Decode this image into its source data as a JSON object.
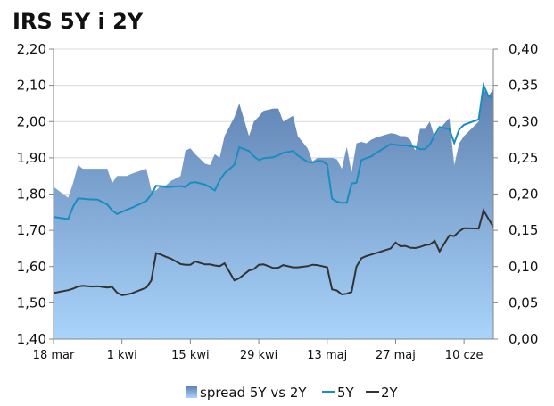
{
  "chart_data": {
    "type": "area",
    "title": "IRS 5Y i 2Y",
    "xlabel": "",
    "ylabel": "",
    "ylim_left": [
      1.4,
      2.2
    ],
    "ylim_right": [
      0.0,
      0.4
    ],
    "left_ticks": [
      "1,40",
      "1,50",
      "1,60",
      "1,70",
      "1,80",
      "1,90",
      "2,00",
      "2,10",
      "2,20"
    ],
    "right_ticks": [
      "0,00",
      "0,05",
      "0,10",
      "0,15",
      "0,20",
      "0,25",
      "0,30",
      "0,35",
      "0,40"
    ],
    "x_tick_labels": [
      "18 mar",
      "1 kwi",
      "15 kwi",
      "29 kwi",
      "13 maj",
      "27 maj",
      "10 cze"
    ],
    "x_tick_days": [
      0,
      14,
      28,
      42,
      56,
      70,
      84
    ],
    "x_range_days": [
      0,
      90
    ],
    "grid": "horizontal",
    "legend_position": "bottom",
    "colors": {
      "spread_top": "#6B8FBC",
      "spread_bottom": "#A9D3FA",
      "line_5y": "#1A8DC0",
      "line_2y": "#333333"
    },
    "series": [
      {
        "name": "spread 5Y vs 2Y",
        "axis": "right",
        "kind": "area",
        "x": [
          0,
          3,
          4,
          5,
          6,
          7,
          8,
          9,
          11,
          12,
          13,
          14,
          15,
          16,
          19,
          20,
          21,
          22,
          23,
          24,
          26,
          27,
          28,
          29,
          31,
          32,
          33,
          34,
          35,
          37,
          38,
          40,
          41,
          42,
          43,
          45,
          46,
          47,
          49,
          50,
          52,
          53,
          54,
          55,
          56,
          57,
          58,
          59,
          60,
          61,
          62,
          63,
          64,
          65,
          66,
          69,
          70,
          71,
          72,
          73,
          74,
          75,
          76,
          77,
          78,
          79,
          81,
          82,
          83,
          84,
          87,
          88,
          89,
          90
        ],
        "values": [
          0.21,
          0.195,
          0.215,
          0.24,
          0.235,
          0.235,
          0.235,
          0.235,
          0.235,
          0.215,
          0.225,
          0.225,
          0.225,
          0.228,
          0.235,
          0.205,
          0.205,
          0.212,
          0.212,
          0.218,
          0.225,
          0.26,
          0.263,
          0.255,
          0.242,
          0.24,
          0.255,
          0.25,
          0.28,
          0.306,
          0.325,
          0.28,
          0.3,
          0.307,
          0.315,
          0.318,
          0.318,
          0.3,
          0.308,
          0.28,
          0.263,
          0.245,
          0.25,
          0.25,
          0.25,
          0.25,
          0.248,
          0.235,
          0.265,
          0.23,
          0.27,
          0.272,
          0.27,
          0.275,
          0.278,
          0.284,
          0.283,
          0.28,
          0.28,
          0.275,
          0.26,
          0.29,
          0.29,
          0.3,
          0.278,
          0.29,
          0.305,
          0.24,
          0.27,
          0.28,
          0.3,
          0.345,
          0.335,
          0.345
        ]
      },
      {
        "name": "5Y",
        "axis": "left",
        "kind": "line",
        "x": [
          0,
          3,
          4,
          5,
          6,
          7,
          8,
          9,
          11,
          12,
          13,
          14,
          15,
          16,
          19,
          20,
          21,
          22,
          23,
          24,
          26,
          27,
          28,
          29,
          31,
          32,
          33,
          34,
          35,
          37,
          38,
          40,
          41,
          42,
          43,
          45,
          46,
          47,
          49,
          50,
          52,
          53,
          54,
          55,
          56,
          57,
          58,
          59,
          60,
          61,
          62,
          63,
          64,
          65,
          66,
          69,
          70,
          71,
          72,
          73,
          74,
          75,
          76,
          77,
          78,
          79,
          81,
          82,
          83,
          84,
          87,
          88,
          89,
          90
        ],
        "values": [
          1.737,
          1.731,
          1.765,
          1.788,
          1.787,
          1.786,
          1.785,
          1.785,
          1.771,
          1.755,
          1.745,
          1.751,
          1.757,
          1.762,
          1.781,
          1.799,
          1.823,
          1.822,
          1.819,
          1.82,
          1.822,
          1.819,
          1.831,
          1.833,
          1.826,
          1.819,
          1.81,
          1.838,
          1.857,
          1.881,
          1.929,
          1.919,
          1.904,
          1.894,
          1.899,
          1.902,
          1.907,
          1.914,
          1.919,
          1.906,
          1.889,
          1.887,
          1.891,
          1.891,
          1.881,
          1.787,
          1.779,
          1.776,
          1.776,
          1.829,
          1.831,
          1.894,
          1.899,
          1.904,
          1.913,
          1.938,
          1.936,
          1.934,
          1.935,
          1.932,
          1.93,
          1.924,
          1.924,
          1.937,
          1.962,
          1.985,
          1.979,
          1.941,
          1.978,
          1.991,
          2.006,
          2.1,
          2.07,
          2.065
        ]
      },
      {
        "name": "2Y",
        "axis": "left",
        "kind": "line",
        "x": [
          0,
          3,
          4,
          5,
          6,
          7,
          8,
          9,
          11,
          12,
          13,
          14,
          15,
          16,
          19,
          20,
          21,
          22,
          23,
          24,
          26,
          27,
          28,
          29,
          31,
          32,
          33,
          34,
          35,
          37,
          38,
          40,
          41,
          42,
          43,
          45,
          46,
          47,
          49,
          50,
          52,
          53,
          54,
          55,
          56,
          57,
          58,
          59,
          60,
          61,
          62,
          63,
          64,
          65,
          66,
          69,
          70,
          71,
          72,
          73,
          74,
          75,
          76,
          77,
          78,
          79,
          81,
          82,
          83,
          84,
          87,
          88,
          89,
          90
        ],
        "values": [
          1.527,
          1.535,
          1.539,
          1.545,
          1.547,
          1.546,
          1.545,
          1.546,
          1.542,
          1.544,
          1.528,
          1.521,
          1.523,
          1.526,
          1.542,
          1.562,
          1.637,
          1.633,
          1.627,
          1.622,
          1.607,
          1.605,
          1.605,
          1.614,
          1.606,
          1.606,
          1.603,
          1.601,
          1.609,
          1.562,
          1.568,
          1.589,
          1.593,
          1.605,
          1.606,
          1.596,
          1.597,
          1.604,
          1.598,
          1.598,
          1.601,
          1.605,
          1.604,
          1.601,
          1.598,
          1.537,
          1.534,
          1.523,
          1.525,
          1.53,
          1.6,
          1.623,
          1.629,
          1.633,
          1.637,
          1.65,
          1.666,
          1.656,
          1.657,
          1.652,
          1.651,
          1.654,
          1.659,
          1.661,
          1.671,
          1.642,
          1.686,
          1.684,
          1.697,
          1.706,
          1.705,
          1.755,
          1.732,
          1.71
        ]
      }
    ]
  }
}
